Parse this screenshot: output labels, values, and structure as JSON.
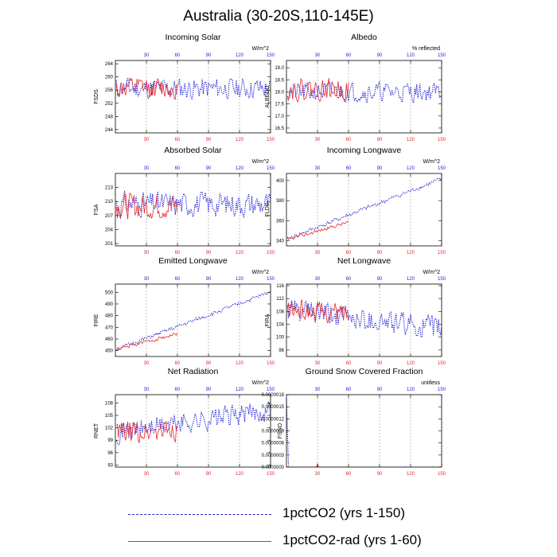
{
  "title": "Australia (30-20S,110-145E)",
  "colors": {
    "series_a": "#1f1fd6",
    "series_b": "#e8262b",
    "axis": "#000000",
    "grid": "#999999",
    "top_ticks": "#1f1fd6",
    "bottom_ticks": "#e8262b"
  },
  "legend": [
    {
      "label": "1pctCO2 (yrs 1-150)",
      "color": "#2a2ad0",
      "style": "dashed"
    },
    {
      "label": "1pctCO2-rad (yrs 1-60)",
      "color": "#e8262b",
      "style": "solid"
    }
  ],
  "chart_data": [
    {
      "type": "line",
      "title": "Incoming Solar",
      "units": "W/m^2",
      "ylabel": "FSDS",
      "xlim": [
        0,
        150
      ],
      "ylim": [
        243,
        265
      ],
      "yticks": [
        244,
        248,
        252,
        256,
        260,
        264
      ],
      "ytick_labels": [
        "244",
        "248",
        "252",
        "256",
        "260",
        "264"
      ],
      "xticks": [
        30,
        60,
        90,
        120,
        150
      ],
      "grid": "x-dashed",
      "series": [
        {
          "name": "1pctCO2 (yrs 1-150)",
          "style": "dotted",
          "color": "blue",
          "x_range": [
            1,
            150
          ],
          "base": 256.5,
          "trend": 0,
          "amplitude": 4,
          "seed": 11
        },
        {
          "name": "1pctCO2-rad (yrs 1-60)",
          "style": "solid",
          "color": "red",
          "x_range": [
            1,
            60
          ],
          "base": 256.5,
          "trend": 0,
          "amplitude": 4,
          "seed": 12
        }
      ]
    },
    {
      "type": "line",
      "title": "Albedo",
      "units": "% reflected",
      "ylabel": "ALBEDO",
      "xlim": [
        0,
        150
      ],
      "ylim": [
        16.3,
        19.3
      ],
      "yticks": [
        16.5,
        17.0,
        17.5,
        18.0,
        18.5,
        19.0
      ],
      "ytick_labels": [
        "16.5",
        "17.0",
        "17.5",
        "18.0",
        "18.5",
        "19.0"
      ],
      "xticks": [
        30,
        60,
        90,
        120,
        150
      ],
      "grid": "x-dashed",
      "series": [
        {
          "name": "1pctCO2 (yrs 1-150)",
          "style": "dotted",
          "color": "blue",
          "x_range": [
            1,
            150
          ],
          "base": 18.0,
          "trend": 0,
          "amplitude": 0.5,
          "seed": 21
        },
        {
          "name": "1pctCO2-rad (yrs 1-60)",
          "style": "solid",
          "color": "red",
          "x_range": [
            1,
            60
          ],
          "base": 18.1,
          "trend": 0,
          "amplitude": 0.55,
          "seed": 22
        }
      ]
    },
    {
      "type": "line",
      "title": "Absorbed Solar",
      "units": "W/m^2",
      "ylabel": "FSA",
      "xlim": [
        0,
        150
      ],
      "ylim": [
        200.5,
        216
      ],
      "yticks": [
        201,
        204,
        207,
        210,
        213
      ],
      "ytick_labels": [
        "201",
        "204",
        "207",
        "210",
        "213"
      ],
      "xticks": [
        30,
        60,
        90,
        120,
        150
      ],
      "grid": "x-dashed",
      "series": [
        {
          "name": "1pctCO2 (yrs 1-150)",
          "style": "dotted",
          "color": "blue",
          "x_range": [
            1,
            150
          ],
          "base": 209.5,
          "trend": 0,
          "amplitude": 3.2,
          "seed": 31
        },
        {
          "name": "1pctCO2-rad (yrs 1-60)",
          "style": "solid",
          "color": "red",
          "x_range": [
            1,
            60
          ],
          "base": 209.0,
          "trend": 0,
          "amplitude": 3.4,
          "seed": 32
        }
      ]
    },
    {
      "type": "line",
      "title": "Incoming Longwave",
      "units": "W/m^2",
      "ylabel": "FLDS",
      "xlim": [
        0,
        150
      ],
      "ylim": [
        335,
        407
      ],
      "yticks": [
        340,
        360,
        380,
        400
      ],
      "ytick_labels": [
        "340",
        "360",
        "380",
        "400"
      ],
      "xticks": [
        30,
        60,
        90,
        120,
        150
      ],
      "grid": "x-dashed",
      "series": [
        {
          "name": "1pctCO2 (yrs 1-150)",
          "style": "dotted",
          "color": "blue",
          "x_range": [
            1,
            150
          ],
          "base": 342,
          "trend": 0.4,
          "amplitude": 2.5,
          "seed": 41
        },
        {
          "name": "1pctCO2-rad (yrs 1-60)",
          "style": "solid",
          "color": "red",
          "x_range": [
            1,
            60
          ],
          "base": 341,
          "trend": 0.3,
          "amplitude": 2.2,
          "seed": 42
        }
      ]
    },
    {
      "type": "line",
      "title": "Emitted Longwave",
      "units": "W/m^2",
      "ylabel": "FIRE",
      "xlim": [
        0,
        150
      ],
      "ylim": [
        445,
        507
      ],
      "yticks": [
        450,
        460,
        470,
        480,
        490,
        500
      ],
      "ytick_labels": [
        "450",
        "460",
        "470",
        "480",
        "490",
        "500"
      ],
      "xticks": [
        30,
        60,
        90,
        120,
        150
      ],
      "grid": "x-dashed",
      "series": [
        {
          "name": "1pctCO2 (yrs 1-150)",
          "style": "dotted",
          "color": "blue",
          "x_range": [
            1,
            150
          ],
          "base": 451,
          "trend": 0.33,
          "amplitude": 2.0,
          "seed": 51
        },
        {
          "name": "1pctCO2-rad (yrs 1-60)",
          "style": "solid",
          "color": "red",
          "x_range": [
            1,
            60
          ],
          "base": 451,
          "trend": 0.23,
          "amplitude": 1.8,
          "seed": 52
        }
      ]
    },
    {
      "type": "line",
      "title": "Net Longwave",
      "units": "W/m^2",
      "ylabel": "FIRA",
      "xlim": [
        0,
        150
      ],
      "ylim": [
        94,
        116.5
      ],
      "yticks": [
        96,
        100,
        104,
        108,
        112,
        116
      ],
      "ytick_labels": [
        "96",
        "100",
        "104",
        "108",
        "112",
        "116"
      ],
      "xticks": [
        30,
        60,
        90,
        120,
        150
      ],
      "grid": "x-dashed",
      "series": [
        {
          "name": "1pctCO2 (yrs 1-150)",
          "style": "dotted",
          "color": "blue",
          "x_range": [
            1,
            150
          ],
          "base": 108.5,
          "trend": -0.04,
          "amplitude": 4.5,
          "seed": 61
        },
        {
          "name": "1pctCO2-rad (yrs 1-60)",
          "style": "solid",
          "color": "red",
          "x_range": [
            1,
            60
          ],
          "base": 108.5,
          "trend": -0.02,
          "amplitude": 4.0,
          "seed": 62
        }
      ]
    },
    {
      "type": "line",
      "title": "Net Radiation",
      "units": "W/m^2",
      "ylabel": "RNET",
      "xlim": [
        0,
        150
      ],
      "ylim": [
        92.5,
        110
      ],
      "yticks": [
        93,
        96,
        99,
        102,
        105,
        108
      ],
      "ytick_labels": [
        "93",
        "96",
        "99",
        "102",
        "105",
        "108"
      ],
      "xticks": [
        30,
        60,
        90,
        120,
        150
      ],
      "grid": "x-dashed",
      "series": [
        {
          "name": "1pctCO2 (yrs 1-150)",
          "style": "dotted",
          "color": "blue",
          "x_range": [
            1,
            150
          ],
          "base": 101,
          "trend": 0.035,
          "amplitude": 3.2,
          "seed": 71
        },
        {
          "name": "1pctCO2-rad (yrs 1-60)",
          "style": "solid",
          "color": "red",
          "x_range": [
            1,
            60
          ],
          "base": 100.5,
          "trend": 0.02,
          "amplitude": 3.6,
          "seed": 72
        }
      ]
    },
    {
      "type": "line",
      "title": "Ground Snow Covered Fraction",
      "units": "unitless",
      "ylabel": "FSNO",
      "xlim": [
        0,
        150
      ],
      "ylim": [
        0,
        1.8e-06
      ],
      "yticks": [
        0,
        3e-07,
        6e-07,
        9e-07,
        1.2e-06,
        1.5e-06,
        1.8e-06
      ],
      "ytick_labels": [
        "0.0000000",
        "0.0000003",
        "0.0000006",
        "0.0000009",
        "0.0000012",
        "0.0000015",
        "0.0000018"
      ],
      "xticks": [
        30,
        60,
        90,
        120,
        150
      ],
      "grid": "x-dashed",
      "series": [
        {
          "name": "1pctCO2 (yrs 1-150)",
          "style": "dotted",
          "color": "blue",
          "points": [
            [
              0,
              1.7e-06
            ],
            [
              2,
              0
            ],
            [
              150,
              0
            ]
          ]
        },
        {
          "name": "1pctCO2-rad (yrs 1-60)",
          "style": "solid",
          "color": "red",
          "points": [
            [
              1,
              0
            ],
            [
              29,
              0
            ],
            [
              30,
              8e-08
            ],
            [
              31,
              0
            ],
            [
              60,
              0
            ]
          ]
        }
      ]
    }
  ]
}
